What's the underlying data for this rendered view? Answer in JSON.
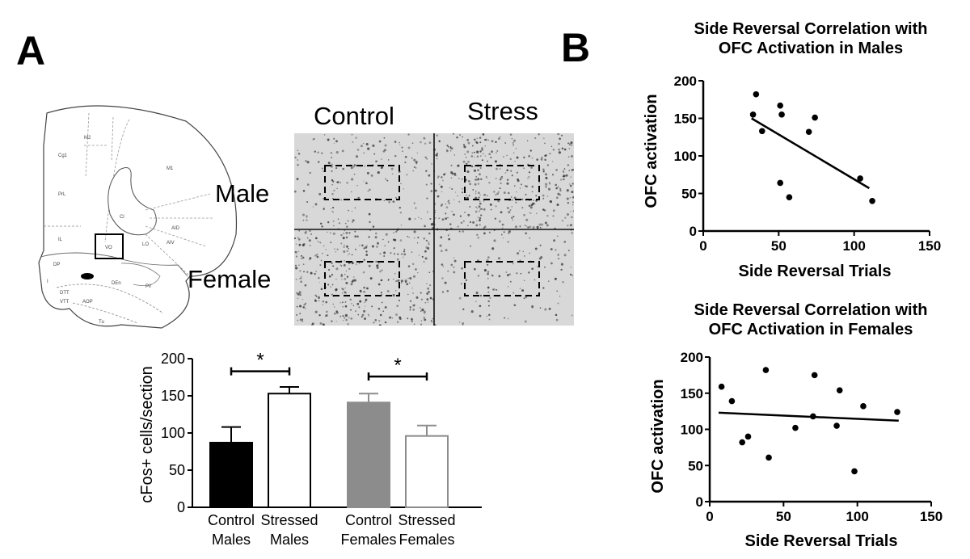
{
  "colors": {
    "black": "#000000",
    "gray_bar": "#8c8c8c",
    "gray_outline": "#8c8c8c",
    "micrograph_bg": "#d8d8d8",
    "cell_stain": "#3a3a3a"
  },
  "panel_a": {
    "letter": "A",
    "brain_atlas": {
      "region_labels": [
        "M2",
        "Cg1",
        "M1",
        "PrL",
        "Cl",
        "AID",
        "IL",
        "VO",
        "LO",
        "AIV",
        "DP",
        "DTT",
        "DEn",
        "Pir",
        "VTT",
        "AOP",
        "Tu",
        "I"
      ]
    },
    "micrograph": {
      "column_labels": [
        "Control",
        "Stress"
      ],
      "row_labels": [
        "Male",
        "Female"
      ],
      "cell_density": [
        [
          0.45,
          0.95
        ],
        [
          0.9,
          0.35
        ]
      ]
    }
  },
  "panel_b": {
    "letter": "B"
  },
  "chart_data": [
    {
      "type": "bar",
      "ylabel": "cFos+ cells/section",
      "ylim": [
        0,
        200
      ],
      "yticks": [
        0,
        50,
        100,
        150,
        200
      ],
      "categories": [
        {
          "line1": "Control",
          "line2": "Males"
        },
        {
          "line1": "Stressed",
          "line2": "Males"
        },
        {
          "line1": "Control",
          "line2": "Females"
        },
        {
          "line1": "Stressed",
          "line2": "Females"
        }
      ],
      "values": [
        87,
        153,
        141,
        96
      ],
      "errors": [
        21,
        9,
        12,
        14
      ],
      "fills": [
        "#000000",
        "#ffffff",
        "#8c8c8c",
        "#ffffff"
      ],
      "strokes": [
        "#000000",
        "#000000",
        "#8c8c8c",
        "#8c8c8c"
      ],
      "significance": [
        {
          "from": 0,
          "to": 1,
          "at": 183,
          "label": "*"
        },
        {
          "from": 2,
          "to": 3,
          "at": 176,
          "label": "*"
        }
      ]
    },
    {
      "type": "scatter",
      "title": "Side Reversal Correlation with OFC Activation in Males",
      "title_lines": [
        "Side Reversal Correlation with",
        "OFC Activation in Males"
      ],
      "xlabel": "Side Reversal Trials",
      "ylabel": "OFC activation",
      "xlim": [
        0,
        150
      ],
      "ylim": [
        0,
        200
      ],
      "xticks": [
        0,
        50,
        100,
        150
      ],
      "yticks": [
        0,
        50,
        100,
        150,
        200
      ],
      "points": [
        [
          33,
          155
        ],
        [
          35,
          182
        ],
        [
          39,
          133
        ],
        [
          51,
          167
        ],
        [
          52,
          155
        ],
        [
          51,
          64
        ],
        [
          57,
          45
        ],
        [
          70,
          132
        ],
        [
          74,
          151
        ],
        [
          104,
          70
        ],
        [
          112,
          40
        ]
      ],
      "fit": {
        "x": [
          32,
          110
        ],
        "y": [
          150,
          57
        ]
      }
    },
    {
      "type": "scatter",
      "title": "Side Reversal Correlation with OFC Activation in Females",
      "title_lines": [
        "Side Reversal Correlation with",
        "OFC Activation in Females"
      ],
      "xlabel": "Side Reversal Trials",
      "ylabel": "OFC activation",
      "xlim": [
        0,
        150
      ],
      "ylim": [
        0,
        200
      ],
      "xticks": [
        0,
        50,
        100,
        150
      ],
      "yticks": [
        0,
        50,
        100,
        150,
        200
      ],
      "points": [
        [
          8,
          159
        ],
        [
          15,
          139
        ],
        [
          22,
          82
        ],
        [
          26,
          90
        ],
        [
          38,
          182
        ],
        [
          40,
          61
        ],
        [
          58,
          102
        ],
        [
          70,
          118
        ],
        [
          71,
          175
        ],
        [
          86,
          105
        ],
        [
          88,
          154
        ],
        [
          98,
          42
        ],
        [
          104,
          132
        ],
        [
          127,
          124
        ]
      ],
      "fit": {
        "x": [
          6,
          128
        ],
        "y": [
          123,
          112
        ]
      }
    }
  ]
}
